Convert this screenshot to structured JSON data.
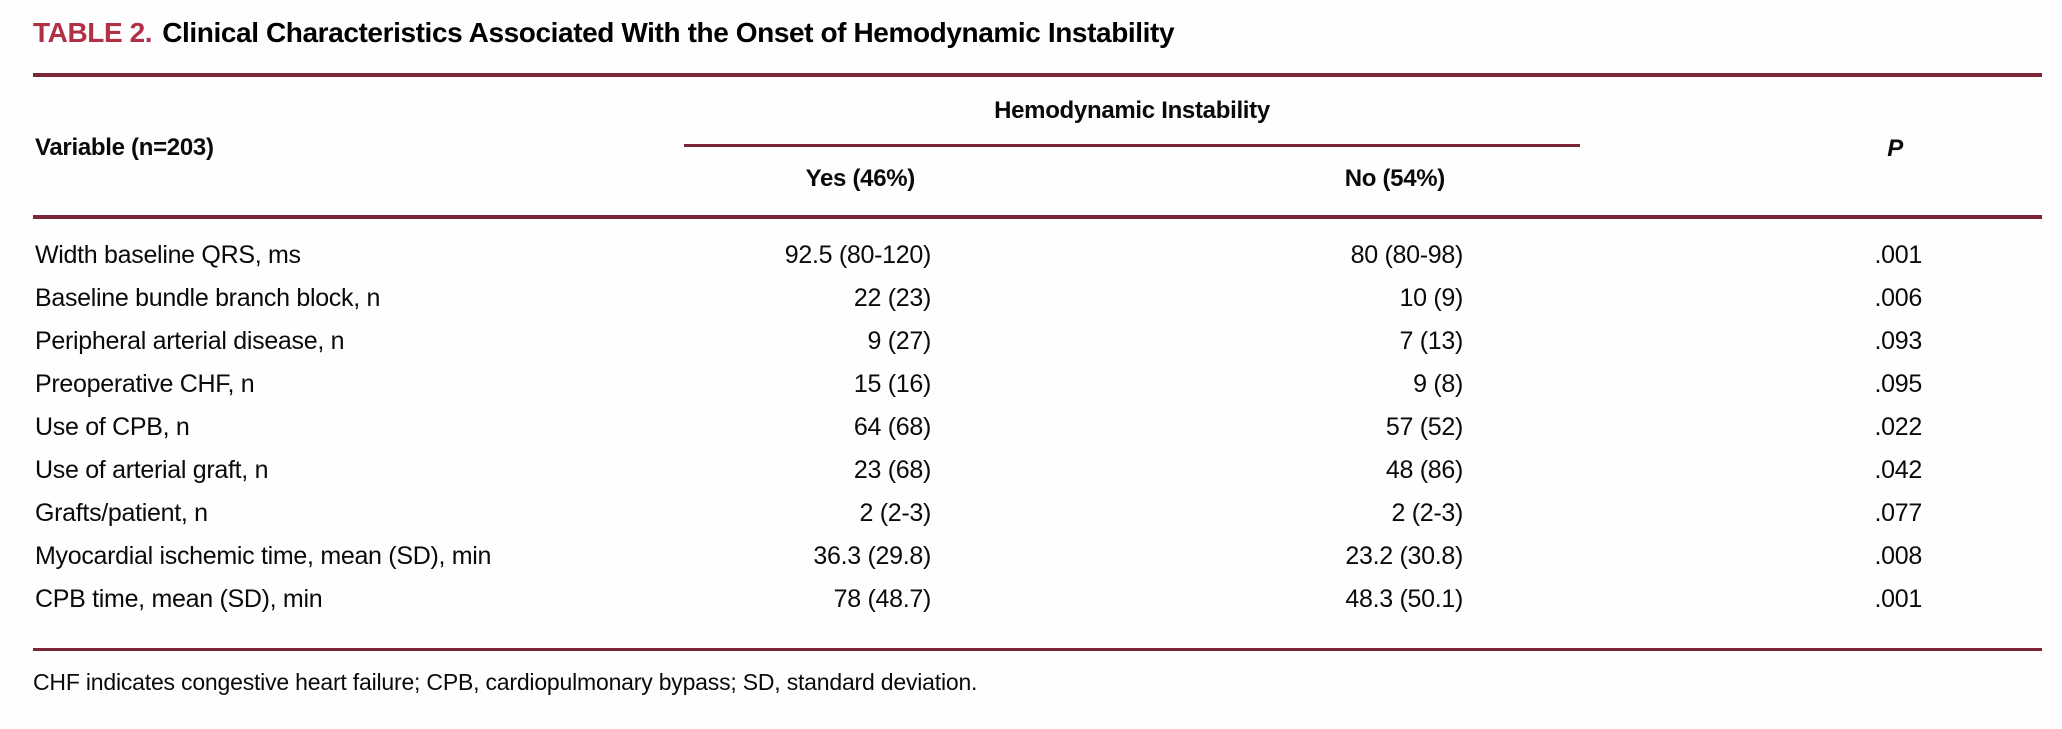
{
  "colors": {
    "title_accent": "#b23046",
    "rule_maroon": "#7b2637",
    "text": "#0a0a0a",
    "background": "#ffffff"
  },
  "table": {
    "label": "TABLE 2.",
    "title": "Clinical Characteristics Associated With the Onset of Hemodynamic Instability",
    "spanner_header": "Hemodynamic Instability",
    "columns": {
      "variable": "Variable (n=203)",
      "yes": "Yes (46%)",
      "no": "No (54%)",
      "p": "P"
    },
    "rows": [
      {
        "variable": "Width baseline QRS, ms",
        "yes": "92.5 (80-120)",
        "no": "80 (80-98)",
        "p": ".001"
      },
      {
        "variable": "Baseline bundle branch block, n",
        "yes": "22 (23)",
        "no": "10 (9)",
        "p": ".006"
      },
      {
        "variable": "Peripheral arterial disease, n",
        "yes": "9 (27)",
        "no": "7 (13)",
        "p": ".093"
      },
      {
        "variable": "Preoperative CHF, n",
        "yes": "15 (16)",
        "no": "9 (8)",
        "p": ".095"
      },
      {
        "variable": "Use of CPB, n",
        "yes": "64 (68)",
        "no": "57 (52)",
        "p": ".022"
      },
      {
        "variable": "Use of arterial graft, n",
        "yes": "23 (68)",
        "no": "48 (86)",
        "p": ".042"
      },
      {
        "variable": "Grafts/patient, n",
        "yes": "2 (2-3)",
        "no": "2 (2-3)",
        "p": ".077"
      },
      {
        "variable": "Myocardial ischemic time, mean (SD), min",
        "yes": "36.3 (29.8)",
        "no": "23.2 (30.8)",
        "p": ".008"
      },
      {
        "variable": "CPB time, mean (SD), min",
        "yes": "78 (48.7)",
        "no": "48.3 (50.1)",
        "p": ".001"
      }
    ],
    "footnote": "CHF indicates congestive heart failure; CPB, cardiopulmonary bypass; SD, standard deviation."
  }
}
